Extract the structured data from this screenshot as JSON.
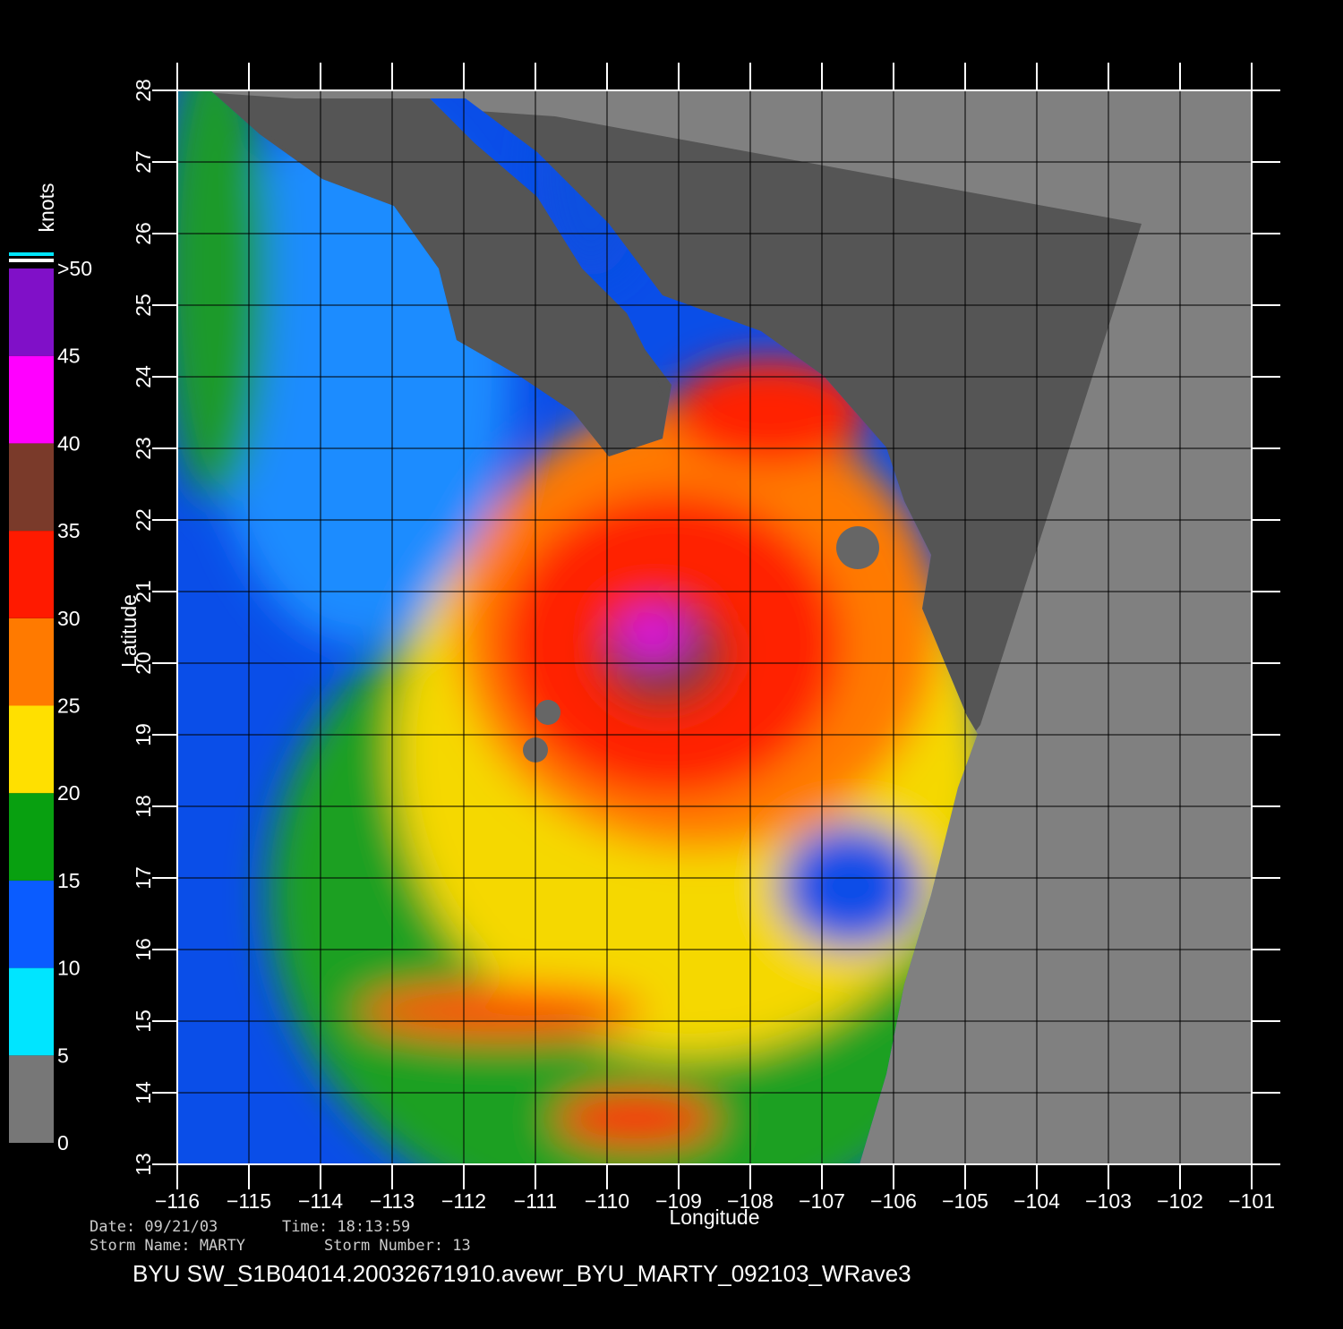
{
  "map": {
    "x_label": "Longitude",
    "y_label": "Latitude",
    "xlim": [
      -116,
      -101
    ],
    "ylim": [
      13,
      28
    ],
    "xticks": [
      {
        "value": -116,
        "label": "−116"
      },
      {
        "value": -115,
        "label": "−115"
      },
      {
        "value": -114,
        "label": "−114"
      },
      {
        "value": -113,
        "label": "−113"
      },
      {
        "value": -112,
        "label": "−112"
      },
      {
        "value": -111,
        "label": "−111"
      },
      {
        "value": -110,
        "label": "−110"
      },
      {
        "value": -109,
        "label": "−109"
      },
      {
        "value": -108,
        "label": "−108"
      },
      {
        "value": -107,
        "label": "−107"
      },
      {
        "value": -106,
        "label": "−106"
      },
      {
        "value": -105,
        "label": "−105"
      },
      {
        "value": -104,
        "label": "−104"
      },
      {
        "value": -103,
        "label": "−103"
      },
      {
        "value": -102,
        "label": "−102"
      },
      {
        "value": -101,
        "label": "−101"
      }
    ],
    "yticks": [
      13,
      14,
      15,
      16,
      17,
      18,
      19,
      20,
      21,
      22,
      23,
      24,
      25,
      26,
      27,
      28
    ]
  },
  "colorbar": {
    "title": "knots",
    "lim": [
      0,
      50
    ],
    "ticks": [
      0,
      5,
      10,
      15,
      20,
      25,
      30,
      35,
      40,
      45,
      {
        "value": 50,
        "label": ">50"
      }
    ],
    "colors": [
      "#777777",
      "#00e5ff",
      "#0a5cff",
      "#08a010",
      "#ffe000",
      "#ff7a00",
      "#ff1a00",
      "#7a3a2a",
      "#ff00ff",
      "#8010c8"
    ]
  },
  "footer": {
    "date": "Date: 09/21/03",
    "time": "Time: 18:13:59",
    "storm_name": "Storm  Name: MARTY",
    "storm_number": "Storm  Number: 13",
    "title": "BYU  SW_S1B04014.20032671910.avewr_BYU_MARTY_092103_WRave3"
  }
}
